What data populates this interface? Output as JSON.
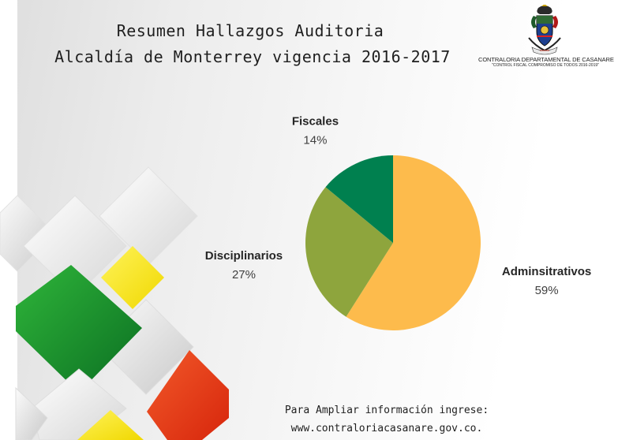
{
  "header": {
    "title_line1": "Resumen Hallazgos Auditoria",
    "title_line2": "Alcaldía de Monterrey vigencia 2016-2017"
  },
  "logo": {
    "icon": "coat-of-arms-icon",
    "caption_line1": "CONTRALORIA DEPARTAMENTAL DE CASANARE",
    "caption_line2": "\"CONTROL FISCAL COMPROMISO DE TODOS 2016-2019\""
  },
  "chart_data": {
    "type": "pie",
    "title": "",
    "slices": [
      {
        "label": "Adminsitrativos",
        "value": 59,
        "value_label": "59%",
        "color": "#fdbb4c"
      },
      {
        "label": "Disciplinarios",
        "value": 27,
        "value_label": "27%",
        "color": "#8ea53d"
      },
      {
        "label": "Fiscales",
        "value": 14,
        "value_label": "14%",
        "color": "#00804f"
      }
    ],
    "start": "12 o'clock",
    "direction": "clockwise",
    "legend": "none (labels outside slices)"
  },
  "footer": {
    "line1": "Para Ampliar información ingrese:",
    "line2": "www.contraloriacasanare.gov.co."
  }
}
